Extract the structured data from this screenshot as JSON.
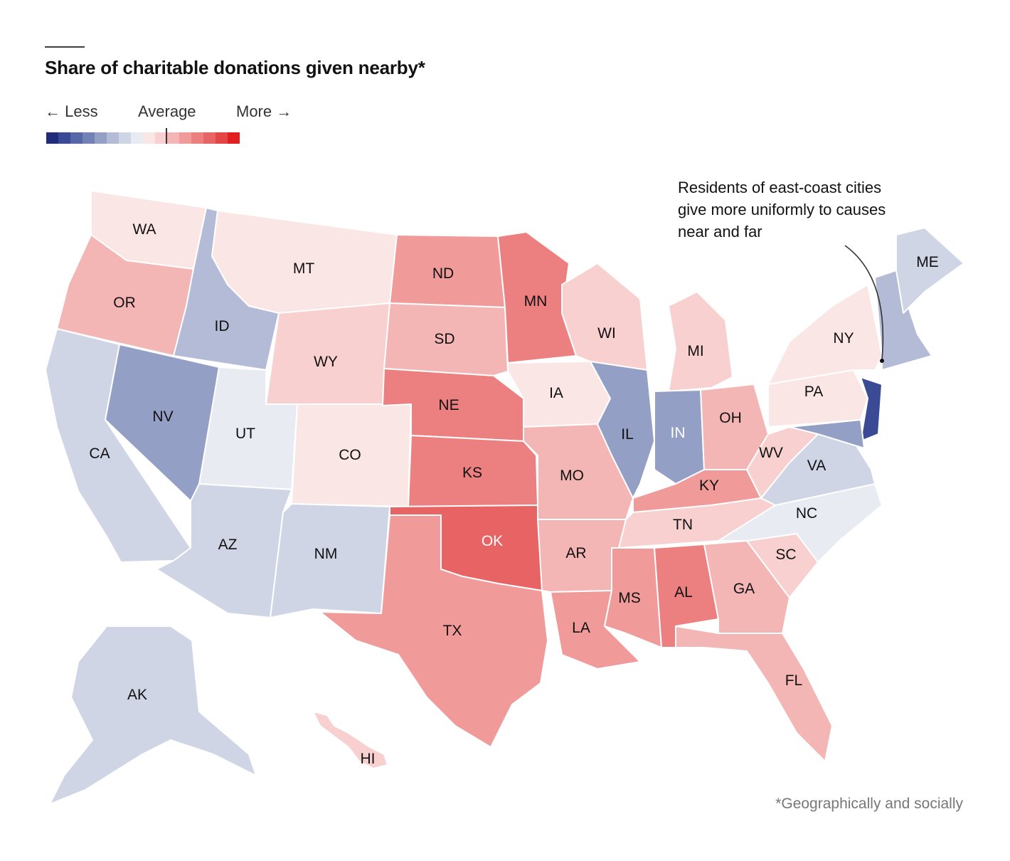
{
  "title": "Share of charitable donations given nearby*",
  "legend": {
    "less": "← Less",
    "average": "Average",
    "more": "More →",
    "colors": [
      "#1f2d7a",
      "#3a4a95",
      "#5666a6",
      "#7481b5",
      "#949fc6",
      "#b3bbd6",
      "#d0d5e6",
      "#e9ebf3",
      "#fbe6e6",
      "#f8d0d0",
      "#f4b5b5",
      "#f09a9a",
      "#ec7f7f",
      "#e86464",
      "#e44646",
      "#e11f1f"
    ]
  },
  "annotation": "Residents of east-coast cities give more uniformly to causes near and far",
  "footnote": "*Geographically and socially",
  "states": [
    {
      "code": "WA",
      "level": 1
    },
    {
      "code": "OR",
      "level": 3
    },
    {
      "code": "CA",
      "level": -1
    },
    {
      "code": "ID",
      "level": -2
    },
    {
      "code": "NV",
      "level": -3
    },
    {
      "code": "MT",
      "level": 1
    },
    {
      "code": "WY",
      "level": 2
    },
    {
      "code": "UT",
      "level": 0
    },
    {
      "code": "AZ",
      "level": -1
    },
    {
      "code": "CO",
      "level": 1
    },
    {
      "code": "NM",
      "level": -1
    },
    {
      "code": "ND",
      "level": 4
    },
    {
      "code": "SD",
      "level": 3
    },
    {
      "code": "NE",
      "level": 5
    },
    {
      "code": "KS",
      "level": 5
    },
    {
      "code": "OK",
      "level": 6
    },
    {
      "code": "TX",
      "level": 4
    },
    {
      "code": "MN",
      "level": 5
    },
    {
      "code": "IA",
      "level": 1
    },
    {
      "code": "MO",
      "level": 3
    },
    {
      "code": "AR",
      "level": 3
    },
    {
      "code": "LA",
      "level": 4
    },
    {
      "code": "WI",
      "level": 2
    },
    {
      "code": "IL",
      "level": -3
    },
    {
      "code": "MI",
      "level": 2
    },
    {
      "code": "IN",
      "level": -3
    },
    {
      "code": "OH",
      "level": 3
    },
    {
      "code": "KY",
      "level": 4
    },
    {
      "code": "TN",
      "level": 2
    },
    {
      "code": "MS",
      "level": 4
    },
    {
      "code": "AL",
      "level": 5
    },
    {
      "code": "GA",
      "level": 3
    },
    {
      "code": "FL",
      "level": 3
    },
    {
      "code": "SC",
      "level": 2
    },
    {
      "code": "NC",
      "level": 0
    },
    {
      "code": "VA",
      "level": -1
    },
    {
      "code": "WV",
      "level": 2
    },
    {
      "code": "PA",
      "level": 1
    },
    {
      "code": "NY",
      "level": 1
    },
    {
      "code": "ME",
      "level": -1
    },
    {
      "code": "AK",
      "level": -1
    },
    {
      "code": "HI",
      "level": 2
    }
  ]
}
